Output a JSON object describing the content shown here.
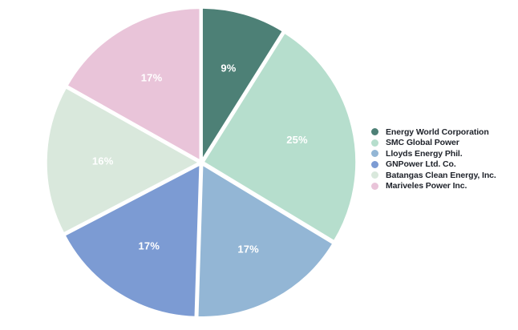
{
  "chart_data": {
    "type": "pie",
    "title": "",
    "legend_position": "right",
    "direction": "clockwise",
    "start_angle_deg": 0,
    "background_color": "#ffffff",
    "value_label_color": "#ffffff",
    "legend_text_color": "#20242c",
    "separator_color": "#ffffff",
    "series": [
      {
        "label": "Energy World Corporation",
        "value": 9,
        "percent_label": "9%",
        "color": "#4d8076"
      },
      {
        "label": "SMC Global Power",
        "value": 25,
        "percent_label": "25%",
        "color": "#b6decd"
      },
      {
        "label": "Lloyds Energy Phil.",
        "value": 17,
        "percent_label": "17%",
        "color": "#93b6d5"
      },
      {
        "label": "GNPower Ltd. Co.",
        "value": 17,
        "percent_label": "17%",
        "color": "#7c9bd3"
      },
      {
        "label": "Batangas Clean Energy, Inc.",
        "value": 16,
        "percent_label": "16%",
        "color": "#d9e8dc"
      },
      {
        "label": "Mariveles Power Inc.",
        "value": 17,
        "percent_label": "17%",
        "color": "#e9c4d9"
      }
    ]
  }
}
